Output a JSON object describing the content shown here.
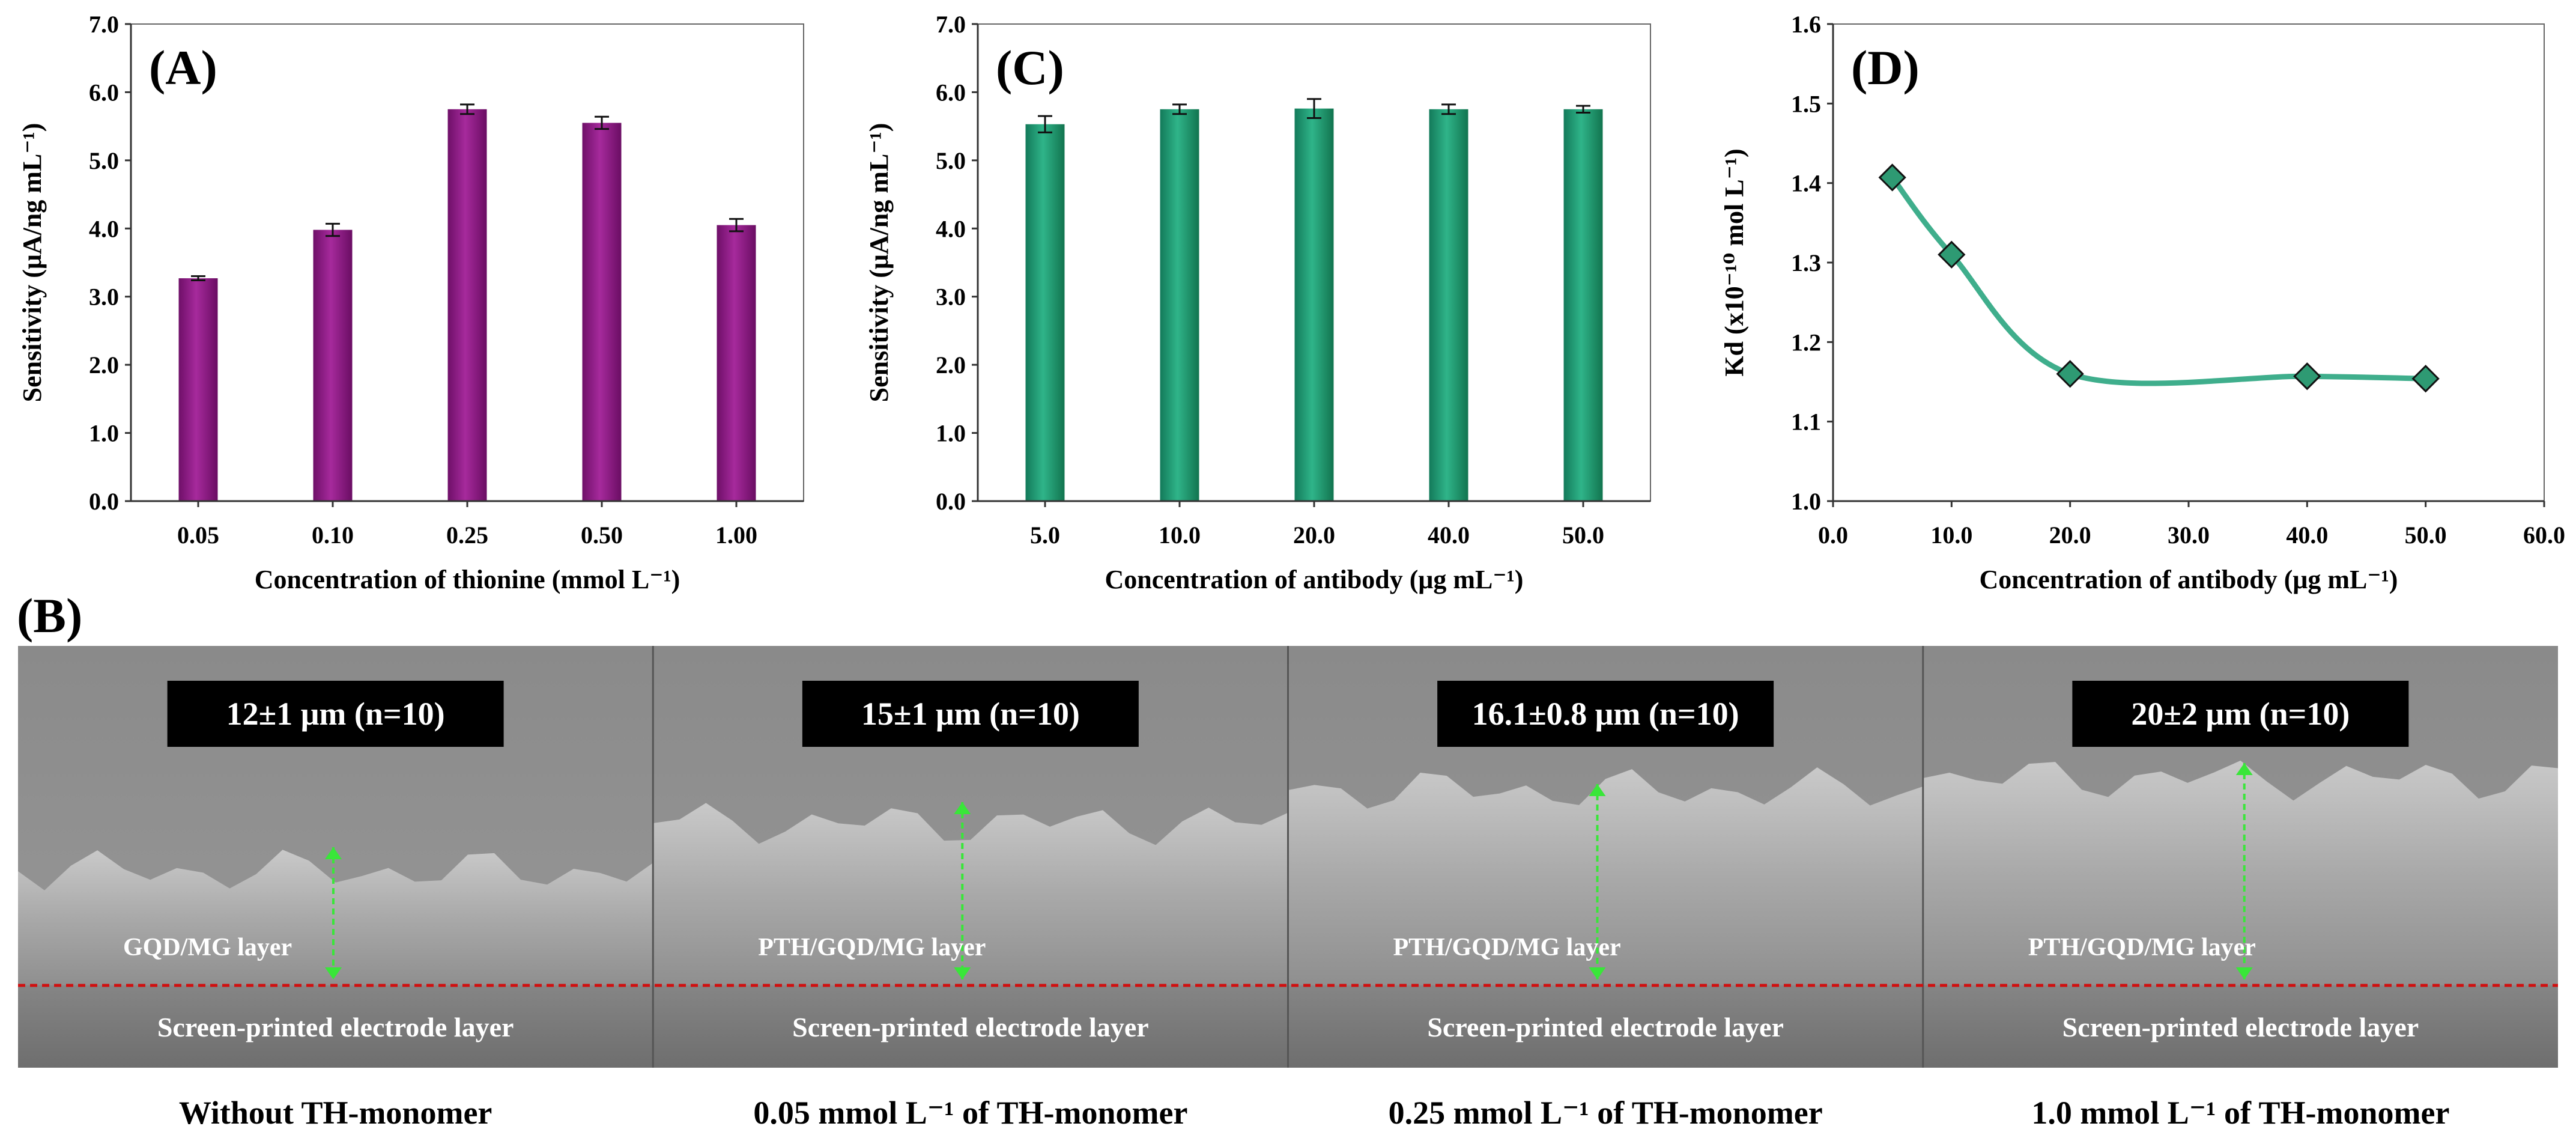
{
  "colors": {
    "bar_purple": "#8e1a86",
    "bar_green": "#22a07a",
    "line_green": "#3fae8c",
    "marker_green": "#2e9a73",
    "arrow_green": "#39e639",
    "interface_red": "#d01010"
  },
  "chart_data": [
    {
      "panel": "(A)",
      "type": "bar",
      "categories": [
        "0.05",
        "0.10",
        "0.25",
        "0.50",
        "1.00"
      ],
      "values": [
        3.27,
        3.98,
        5.75,
        5.55,
        4.05
      ],
      "errors": [
        0.03,
        0.09,
        0.07,
        0.09,
        0.09
      ],
      "ylim": [
        0,
        7
      ],
      "yticks": [
        "0.0",
        "1.0",
        "2.0",
        "3.0",
        "4.0",
        "5.0",
        "6.0",
        "7.0"
      ],
      "xlabel": "Concentration of thionine (mmol L⁻¹)",
      "ylabel": "Sensitivity (μA/ng mL⁻¹)"
    },
    {
      "panel": "(C)",
      "type": "bar",
      "categories": [
        "5.0",
        "10.0",
        "20.0",
        "40.0",
        "50.0"
      ],
      "values": [
        5.53,
        5.75,
        5.76,
        5.75,
        5.75
      ],
      "errors": [
        0.12,
        0.07,
        0.14,
        0.07,
        0.05
      ],
      "ylim": [
        0,
        7
      ],
      "yticks": [
        "0.0",
        "1.0",
        "2.0",
        "3.0",
        "4.0",
        "5.0",
        "6.0",
        "7.0"
      ],
      "xlabel": "Concentration of antibody (μg mL⁻¹)",
      "ylabel": "Sensitivity (μA/ng mL⁻¹)"
    },
    {
      "panel": "(D)",
      "type": "line",
      "x": [
        5,
        10,
        20,
        40,
        50
      ],
      "y": [
        1.407,
        1.31,
        1.16,
        1.157,
        1.154
      ],
      "xlim": [
        0,
        60
      ],
      "ylim": [
        1.0,
        1.6
      ],
      "xticks": [
        "0.0",
        "10.0",
        "20.0",
        "30.0",
        "40.0",
        "50.0",
        "60.0"
      ],
      "yticks": [
        "1.0",
        "1.1",
        "1.2",
        "1.3",
        "1.4",
        "1.5",
        "1.6"
      ],
      "xlabel": "Concentration of antibody (μg mL⁻¹)",
      "ylabel": "Kd (x10⁻¹⁰ mol L⁻¹)"
    }
  ],
  "sem": {
    "panel": "(B)",
    "images": [
      {
        "measurement": "12±1 μm (n=10)",
        "layer": "GQD/MG layer",
        "electrode": "Screen-printed electrode layer",
        "caption": "Without TH-monomer"
      },
      {
        "measurement": "15±1 μm (n=10)",
        "layer": "PTH/GQD/MG layer",
        "electrode": "Screen-printed electrode layer",
        "caption": "0.05 mmol L⁻¹ of TH-monomer"
      },
      {
        "measurement": "16.1±0.8 μm (n=10)",
        "layer": "PTH/GQD/MG layer",
        "electrode": "Screen-printed electrode layer",
        "caption": "0.25 mmol L⁻¹ of TH-monomer"
      },
      {
        "measurement": "20±2 μm (n=10)",
        "layer": "PTH/GQD/MG layer",
        "electrode": "Screen-printed electrode layer",
        "caption": "1.0 mmol L⁻¹ of TH-monomer"
      }
    ]
  }
}
